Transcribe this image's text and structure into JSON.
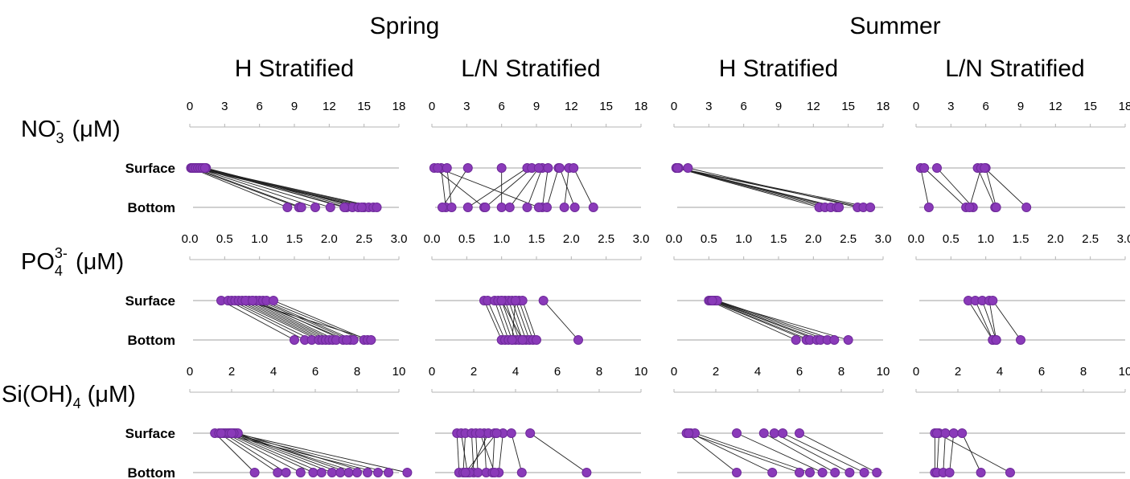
{
  "seasons": [
    "Spring",
    "Summer"
  ],
  "strat_labels": [
    "H Stratified",
    "L/N Stratified",
    "H Stratified",
    "L/N Stratified"
  ],
  "variables": [
    {
      "base": "NO",
      "sub": "3",
      "sup": "-",
      "unit": "(μM)"
    },
    {
      "base": "PO",
      "sub": "4",
      "sup": "3-",
      "unit": "(μM)"
    },
    {
      "base": "Si(OH)",
      "sub": "4",
      "sup": "",
      "unit": "(μM)"
    }
  ],
  "row_labels": {
    "surface": "Surface",
    "bottom": "Bottom"
  },
  "colors": {
    "marker": "#8a3ab9",
    "marker_edge": "#6e2a9a",
    "link": "#222222",
    "axis": "#b5b5b5"
  },
  "chart_data": [
    {
      "type": "scatter",
      "panel": "Spring / H Stratified",
      "variable": "NO3-",
      "xlim": [
        0,
        18
      ],
      "ticks": [
        "0",
        "3",
        "6",
        "9",
        "12",
        "15",
        "18"
      ],
      "pairs": [
        [
          0.1,
          8.4
        ],
        [
          0.2,
          9.4
        ],
        [
          0.4,
          9.6
        ],
        [
          0.6,
          10.8
        ],
        [
          0.8,
          12.1
        ],
        [
          1.0,
          13.5
        ],
        [
          1.2,
          14.0
        ],
        [
          1.4,
          14.5
        ],
        [
          0.3,
          15.0
        ],
        [
          0.5,
          15.4
        ],
        [
          0.7,
          15.8
        ],
        [
          0.9,
          16.1
        ],
        [
          1.1,
          13.3
        ],
        [
          1.3,
          14.8
        ]
      ]
    },
    {
      "type": "scatter",
      "panel": "Spring / L/N Stratified",
      "variable": "NO3-",
      "xlim": [
        0,
        18
      ],
      "ticks": [
        "0",
        "3",
        "6",
        "9",
        "12",
        "15",
        "18"
      ],
      "pairs": [
        [
          0.2,
          4.5
        ],
        [
          0.8,
          1.2
        ],
        [
          1.3,
          1.7
        ],
        [
          3.1,
          0.9
        ],
        [
          6.0,
          6.0
        ],
        [
          8.2,
          3.1
        ],
        [
          8.6,
          4.6
        ],
        [
          9.5,
          8.2
        ],
        [
          10.0,
          9.5
        ],
        [
          10.9,
          9.9
        ],
        [
          11.8,
          11.4
        ],
        [
          11.0,
          12.3
        ],
        [
          12.2,
          13.9
        ],
        [
          9.2,
          6.7
        ],
        [
          0.5,
          9.2
        ]
      ]
    },
    {
      "type": "scatter",
      "panel": "Summer / H Stratified",
      "variable": "NO3-",
      "xlim": [
        0,
        18
      ],
      "ticks": [
        "0",
        "3",
        "6",
        "9",
        "12",
        "15",
        "18"
      ],
      "pairs": [
        [
          0.2,
          12.5
        ],
        [
          0.3,
          13.0
        ],
        [
          0.4,
          13.5
        ],
        [
          0.2,
          14.0
        ],
        [
          0.3,
          14.2
        ],
        [
          1.2,
          15.8
        ],
        [
          0.2,
          16.3
        ],
        [
          0.3,
          16.9
        ]
      ]
    },
    {
      "type": "scatter",
      "panel": "Summer / L/N Stratified",
      "variable": "NO3-",
      "xlim": [
        0,
        18
      ],
      "ticks": [
        "0",
        "3",
        "6",
        "9",
        "12",
        "15",
        "18"
      ],
      "pairs": [
        [
          0.4,
          1.1
        ],
        [
          0.7,
          4.3
        ],
        [
          1.8,
          4.9
        ],
        [
          5.3,
          6.8
        ],
        [
          5.6,
          4.6
        ],
        [
          6.0,
          6.9
        ],
        [
          5.9,
          9.5
        ]
      ]
    },
    {
      "type": "scatter",
      "panel": "Spring / H Stratified",
      "variable": "PO43-",
      "xlim": [
        0,
        3.0
      ],
      "ticks": [
        "0.0",
        "0.5",
        "1.0",
        "1.5",
        "2.0",
        "2.5",
        "3.0"
      ],
      "pairs": [
        [
          0.45,
          1.5
        ],
        [
          0.55,
          1.65
        ],
        [
          0.6,
          1.75
        ],
        [
          0.65,
          1.85
        ],
        [
          0.7,
          1.9
        ],
        [
          0.75,
          1.95
        ],
        [
          0.8,
          2.0
        ],
        [
          0.85,
          2.05
        ],
        [
          0.9,
          2.1
        ],
        [
          0.95,
          2.2
        ],
        [
          1.0,
          2.3
        ],
        [
          1.05,
          2.35
        ],
        [
          1.1,
          2.5
        ],
        [
          1.2,
          2.55
        ],
        [
          0.8,
          2.6
        ],
        [
          0.9,
          2.25
        ]
      ]
    },
    {
      "type": "scatter",
      "panel": "Spring / L/N Stratified",
      "variable": "PO43-",
      "xlim": [
        0,
        3.0
      ],
      "ticks": [
        "0.0",
        "0.5",
        "1.0",
        "1.5",
        "2.0",
        "2.5",
        "3.0"
      ],
      "pairs": [
        [
          0.75,
          1.0
        ],
        [
          0.8,
          1.05
        ],
        [
          0.9,
          1.1
        ],
        [
          0.95,
          1.15
        ],
        [
          1.0,
          1.2
        ],
        [
          1.05,
          1.25
        ],
        [
          1.1,
          1.3
        ],
        [
          1.15,
          1.35
        ],
        [
          1.2,
          1.4
        ],
        [
          1.25,
          1.45
        ],
        [
          1.3,
          1.5
        ],
        [
          1.6,
          2.1
        ],
        [
          1.0,
          1.3
        ],
        [
          1.2,
          1.15
        ]
      ]
    },
    {
      "type": "scatter",
      "panel": "Summer / H Stratified",
      "variable": "PO43-",
      "xlim": [
        0,
        3.0
      ],
      "ticks": [
        "0.0",
        "0.5",
        "1.0",
        "1.5",
        "2.0",
        "2.5",
        "3.0"
      ],
      "pairs": [
        [
          0.5,
          1.75
        ],
        [
          0.52,
          1.9
        ],
        [
          0.54,
          1.95
        ],
        [
          0.56,
          2.05
        ],
        [
          0.58,
          2.1
        ],
        [
          0.6,
          2.2
        ],
        [
          0.62,
          2.3
        ],
        [
          0.55,
          2.5
        ]
      ]
    },
    {
      "type": "scatter",
      "panel": "Summer / L/N Stratified",
      "variable": "PO43-",
      "xlim": [
        0,
        3.0
      ],
      "ticks": [
        "0.0",
        "0.5",
        "1.0",
        "1.5",
        "2.0",
        "2.5",
        "3.0"
      ],
      "pairs": [
        [
          0.75,
          1.1
        ],
        [
          0.85,
          1.1
        ],
        [
          0.95,
          1.15
        ],
        [
          1.05,
          1.15
        ],
        [
          1.1,
          1.5
        ]
      ]
    },
    {
      "type": "scatter",
      "panel": "Spring / H Stratified",
      "variable": "Si(OH)4",
      "xlim": [
        0,
        10
      ],
      "ticks": [
        "0",
        "2",
        "4",
        "6",
        "8",
        "10"
      ],
      "pairs": [
        [
          1.2,
          3.1
        ],
        [
          1.4,
          4.2
        ],
        [
          1.6,
          4.6
        ],
        [
          1.7,
          5.3
        ],
        [
          1.8,
          5.9
        ],
        [
          1.9,
          6.3
        ],
        [
          2.0,
          6.8
        ],
        [
          2.1,
          7.2
        ],
        [
          2.2,
          7.6
        ],
        [
          2.3,
          8.5
        ],
        [
          1.5,
          9.0
        ],
        [
          1.9,
          9.5
        ],
        [
          2.1,
          10.4
        ],
        [
          2.0,
          8.0
        ]
      ]
    },
    {
      "type": "scatter",
      "panel": "Spring / L/N Stratified",
      "variable": "Si(OH)4",
      "xlim": [
        0,
        10
      ],
      "ticks": [
        "0",
        "2",
        "4",
        "6",
        "8",
        "10"
      ],
      "pairs": [
        [
          1.2,
          1.3
        ],
        [
          1.4,
          1.7
        ],
        [
          1.6,
          1.5
        ],
        [
          1.9,
          2.0
        ],
        [
          2.1,
          2.2
        ],
        [
          2.5,
          2.6
        ],
        [
          2.7,
          1.8
        ],
        [
          3.0,
          2.9
        ],
        [
          3.4,
          3.2
        ],
        [
          3.8,
          4.3
        ],
        [
          4.7,
          7.4
        ],
        [
          2.3,
          3.0
        ],
        [
          3.1,
          1.6
        ]
      ]
    },
    {
      "type": "scatter",
      "panel": "Summer / H Stratified",
      "variable": "Si(OH)4",
      "xlim": [
        0,
        10
      ],
      "ticks": [
        "0",
        "2",
        "4",
        "6",
        "8",
        "10"
      ],
      "pairs": [
        [
          0.6,
          3.0
        ],
        [
          0.8,
          4.7
        ],
        [
          1.0,
          6.5
        ],
        [
          3.0,
          7.1
        ],
        [
          4.3,
          7.7
        ],
        [
          4.8,
          8.4
        ],
        [
          5.2,
          9.1
        ],
        [
          6.0,
          9.7
        ],
        [
          0.7,
          6.0
        ]
      ]
    },
    {
      "type": "scatter",
      "panel": "Summer / L/N Stratified",
      "variable": "Si(OH)4",
      "xlim": [
        0,
        10
      ],
      "ticks": [
        "0",
        "2",
        "4",
        "6",
        "8",
        "10"
      ],
      "pairs": [
        [
          0.9,
          0.9
        ],
        [
          1.1,
          1.0
        ],
        [
          1.4,
          1.3
        ],
        [
          1.8,
          1.6
        ],
        [
          2.2,
          3.1
        ],
        [
          1.0,
          4.5
        ]
      ]
    }
  ]
}
